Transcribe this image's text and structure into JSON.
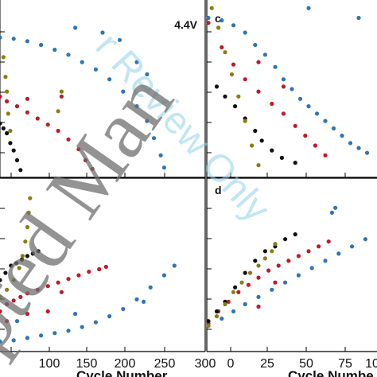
{
  "watermarks": {
    "gray": "pted Man",
    "blue": "r Review Only"
  },
  "chart_data": [
    {
      "panel": "top-left",
      "type": "scatter",
      "title": "4.4V",
      "panel_label": "",
      "xlim": [
        0,
        300
      ],
      "series": [
        {
          "color": "#2e75b6",
          "points": [
            [
              0,
              5.6
            ],
            [
              20,
              5.55
            ],
            [
              40,
              5.45
            ],
            [
              60,
              5.3
            ],
            [
              80,
              5.1
            ],
            [
              100,
              4.9
            ],
            [
              120,
              4.6
            ],
            [
              140,
              4.3
            ],
            [
              160,
              3.9
            ],
            [
              180,
              3.4
            ],
            [
              200,
              2.8
            ],
            [
              215,
              2.2
            ],
            [
              225,
              1.5
            ],
            [
              235,
              0.8
            ],
            [
              240,
              0.3
            ],
            [
              110,
              6.0
            ],
            [
              150,
              5.8
            ],
            [
              175,
              5.5
            ],
            [
              200,
              4.6
            ],
            [
              215,
              4.1
            ]
          ]
        },
        {
          "color": "#c0192a",
          "points": [
            [
              0,
              3.2
            ],
            [
              10,
              3.0
            ],
            [
              25,
              2.8
            ],
            [
              40,
              2.55
            ],
            [
              55,
              2.3
            ],
            [
              70,
              2.05
            ],
            [
              85,
              1.8
            ],
            [
              100,
              1.45
            ],
            [
              115,
              1.05
            ],
            [
              125,
              0.6
            ],
            [
              135,
              0.25
            ],
            [
              40,
              3.1
            ],
            [
              90,
              3.2
            ]
          ]
        },
        {
          "color": "#111111",
          "points": [
            [
              0,
              2.1
            ],
            [
              5,
              1.9
            ],
            [
              10,
              1.7
            ],
            [
              15,
              1.3
            ],
            [
              20,
              1.0
            ],
            [
              25,
              0.6
            ],
            [
              30,
              0.2
            ]
          ]
        },
        {
          "color": "#8a7d10",
          "points": [
            [
              5,
              4.8
            ],
            [
              8,
              4.0
            ],
            [
              10,
              3.4
            ],
            [
              12,
              2.5
            ],
            [
              15,
              1.8
            ],
            [
              85,
              2.6
            ],
            [
              90,
              3.4
            ]
          ]
        }
      ]
    },
    {
      "panel": "top-right",
      "type": "scatter",
      "title": "",
      "panel_label": "c",
      "xlim": [
        0,
        100
      ],
      "series": [
        {
          "color": "#2e75b6",
          "points": [
            [
              0,
              6.4
            ],
            [
              8,
              6.3
            ],
            [
              15,
              6.1
            ],
            [
              22,
              5.8
            ],
            [
              28,
              5.3
            ],
            [
              34,
              4.9
            ],
            [
              40,
              4.4
            ],
            [
              45,
              3.9
            ],
            [
              50,
              3.5
            ],
            [
              55,
              3.1
            ],
            [
              60,
              2.8
            ],
            [
              65,
              2.5
            ],
            [
              70,
              2.2
            ],
            [
              75,
              1.9
            ],
            [
              80,
              1.6
            ],
            [
              85,
              1.3
            ],
            [
              90,
              1.1
            ],
            [
              95,
              0.9
            ],
            [
              60,
              6.8
            ],
            [
              90,
              6.4
            ]
          ]
        },
        {
          "color": "#c0192a",
          "points": [
            [
              0,
              6.2
            ],
            [
              8,
              5.2
            ],
            [
              15,
              4.5
            ],
            [
              22,
              3.9
            ],
            [
              30,
              3.4
            ],
            [
              38,
              2.9
            ],
            [
              45,
              2.5
            ],
            [
              52,
              2.0
            ],
            [
              58,
              1.6
            ],
            [
              64,
              1.2
            ],
            [
              70,
              0.8
            ],
            [
              30,
              4.6
            ],
            [
              45,
              3.6
            ]
          ]
        },
        {
          "color": "#111111",
          "points": [
            [
              5,
              3.6
            ],
            [
              10,
              3.2
            ],
            [
              16,
              2.8
            ],
            [
              22,
              2.3
            ],
            [
              28,
              1.8
            ],
            [
              32,
              1.4
            ],
            [
              38,
              1.0
            ],
            [
              44,
              0.7
            ],
            [
              52,
              0.5
            ]
          ]
        },
        {
          "color": "#8a7d10",
          "points": [
            [
              2,
              6.8
            ],
            [
              6,
              6.0
            ],
            [
              10,
              5.0
            ],
            [
              14,
              4.1
            ],
            [
              18,
              3.2
            ],
            [
              22,
              2.2
            ],
            [
              26,
              1.2
            ],
            [
              30,
              0.4
            ]
          ]
        }
      ]
    },
    {
      "panel": "bottom-left",
      "type": "scatter",
      "title": "",
      "panel_label": "",
      "xlabel": "Cycle Number",
      "xticks": [
        "100",
        "150",
        "200",
        "250"
      ],
      "xlim": [
        0,
        300
      ],
      "series": [
        {
          "color": "#2e75b6",
          "points": [
            [
              0,
              0.35
            ],
            [
              20,
              0.4
            ],
            [
              40,
              0.5
            ],
            [
              60,
              0.6
            ],
            [
              80,
              0.7
            ],
            [
              100,
              0.8
            ],
            [
              120,
              0.95
            ],
            [
              140,
              1.15
            ],
            [
              160,
              1.4
            ],
            [
              180,
              1.7
            ],
            [
              200,
              2.1
            ],
            [
              220,
              2.6
            ],
            [
              240,
              3.1
            ],
            [
              255,
              3.5
            ],
            [
              210,
              2.0
            ],
            [
              25,
              1.2
            ],
            [
              110,
              1.5
            ]
          ]
        },
        {
          "color": "#c0192a",
          "points": [
            [
              0,
              1.6
            ],
            [
              10,
              1.9
            ],
            [
              20,
              2.05
            ],
            [
              30,
              2.2
            ],
            [
              40,
              2.35
            ],
            [
              55,
              2.5
            ],
            [
              70,
              2.65
            ],
            [
              85,
              2.8
            ],
            [
              100,
              2.95
            ],
            [
              115,
              3.1
            ],
            [
              130,
              3.25
            ],
            [
              145,
              3.35
            ],
            [
              155,
              3.45
            ],
            [
              10,
              1.2
            ],
            [
              40,
              1.5
            ],
            [
              70,
              1.6
            ],
            [
              90,
              2.4
            ]
          ]
        },
        {
          "color": "#111111",
          "points": [
            [
              0,
              2.9
            ],
            [
              8,
              3.2
            ],
            [
              16,
              3.5
            ],
            [
              24,
              3.6
            ],
            [
              32,
              3.75
            ],
            [
              40,
              3.9
            ],
            [
              48,
              4.0
            ],
            [
              56,
              4.1
            ]
          ]
        },
        {
          "color": "#8a7d10",
          "points": [
            [
              0,
              2.2
            ],
            [
              10,
              2.5
            ],
            [
              20,
              2.9
            ],
            [
              28,
              3.4
            ],
            [
              33,
              3.9
            ],
            [
              37,
              4.5
            ],
            [
              40,
              5.1
            ],
            [
              42,
              5.7
            ],
            [
              44,
              6.3
            ]
          ]
        }
      ]
    },
    {
      "panel": "bottom-right",
      "type": "scatter",
      "title": "",
      "panel_label": "d",
      "xlabel": "Cycle Numbe",
      "xticks": [
        "300",
        "0",
        "25",
        "50",
        "75",
        "10"
      ],
      "xlim": [
        0,
        100
      ],
      "series": [
        {
          "color": "#2e75b6",
          "points": [
            [
              0,
              1.0
            ],
            [
              8,
              1.3
            ],
            [
              15,
              1.6
            ],
            [
              22,
              1.9
            ],
            [
              30,
              2.2
            ],
            [
              38,
              2.5
            ],
            [
              46,
              2.8
            ],
            [
              54,
              3.1
            ],
            [
              62,
              3.4
            ],
            [
              70,
              3.7
            ],
            [
              78,
              4.0
            ],
            [
              86,
              4.3
            ],
            [
              94,
              4.6
            ],
            [
              74,
              5.7
            ],
            [
              76,
              5.9
            ]
          ]
        },
        {
          "color": "#c0192a",
          "points": [
            [
              0,
              1.1
            ],
            [
              6,
              1.6
            ],
            [
              12,
              2.0
            ],
            [
              18,
              2.4
            ],
            [
              24,
              2.7
            ],
            [
              30,
              3.0
            ],
            [
              36,
              3.3
            ],
            [
              42,
              3.5
            ],
            [
              48,
              3.7
            ],
            [
              54,
              3.9
            ],
            [
              60,
              4.1
            ],
            [
              66,
              4.3
            ],
            [
              72,
              4.5
            ],
            [
              30,
              1.8
            ],
            [
              40,
              2.8
            ]
          ]
        },
        {
          "color": "#111111",
          "points": [
            [
              0,
              1.2
            ],
            [
              5,
              1.6
            ],
            [
              10,
              2.0
            ],
            [
              16,
              2.6
            ],
            [
              22,
              3.2
            ],
            [
              28,
              3.7
            ],
            [
              34,
              4.1
            ],
            [
              40,
              4.3
            ],
            [
              46,
              4.6
            ],
            [
              52,
              4.8
            ]
          ]
        },
        {
          "color": "#8a7d10",
          "points": [
            [
              0,
              1.0
            ],
            [
              5,
              1.4
            ],
            [
              10,
              1.9
            ],
            [
              15,
              2.4
            ],
            [
              20,
              2.8
            ],
            [
              25,
              3.2
            ],
            [
              30,
              3.5
            ],
            [
              34,
              3.8
            ],
            [
              38,
              4.1
            ],
            [
              40,
              4.4
            ]
          ]
        }
      ]
    }
  ]
}
